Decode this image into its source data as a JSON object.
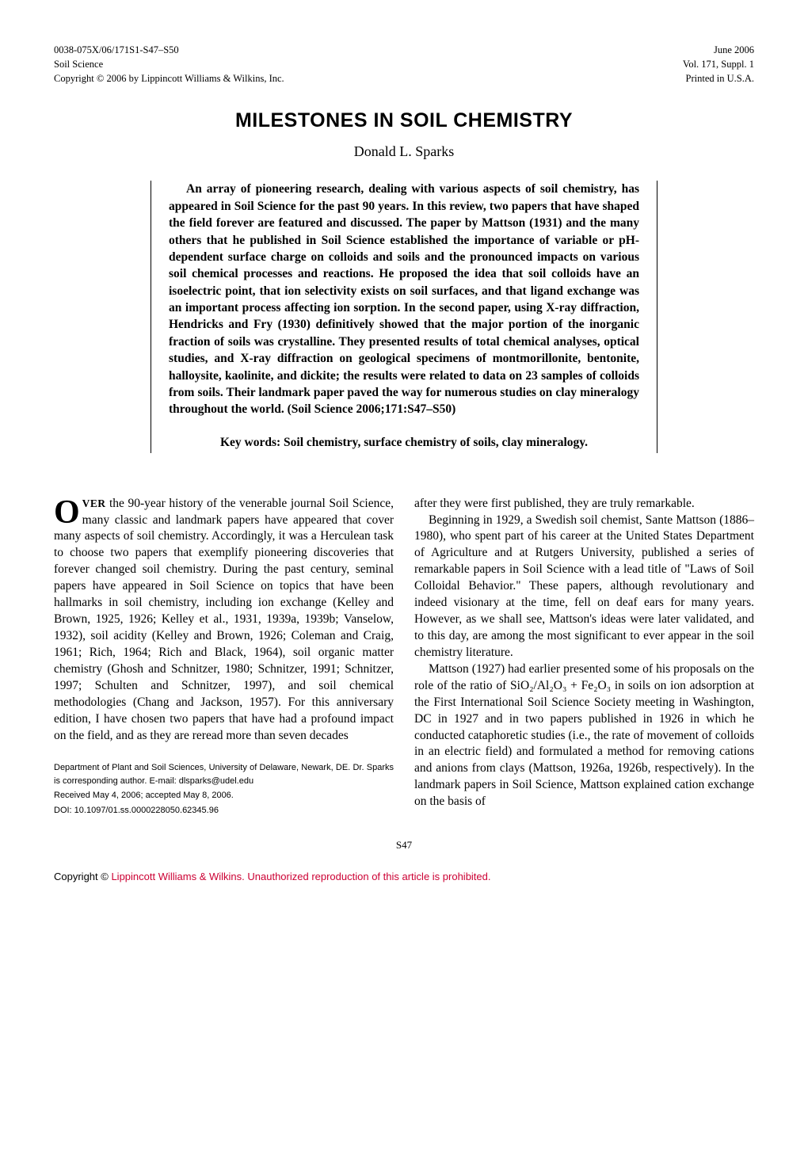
{
  "header": {
    "left": {
      "line1": "0038-075X/06/171S1-S47–S50",
      "line2": "Soil Science",
      "line3": "Copyright © 2006 by Lippincott Williams & Wilkins, Inc."
    },
    "right": {
      "line1": "June 2006",
      "line2": "Vol. 171, Suppl. 1",
      "line3": "Printed in U.S.A."
    }
  },
  "title": "MILESTONES IN SOIL CHEMISTRY",
  "author": "Donald L. Sparks",
  "abstract": "An array of pioneering research, dealing with various aspects of soil chemistry, has appeared in Soil Science for the past 90 years. In this review, two papers that have shaped the field forever are featured and discussed. The paper by Mattson (1931) and the many others that he published in Soil Science established the importance of variable or pH-dependent surface charge on colloids and soils and the pronounced impacts on various soil chemical processes and reactions. He proposed the idea that soil colloids have an isoelectric point, that ion selectivity exists on soil surfaces, and that ligand exchange was an important process affecting ion sorption. In the second paper, using X-ray diffraction, Hendricks and Fry (1930) definitively showed that the major portion of the inorganic fraction of soils was crystalline. They presented results of total chemical analyses, optical studies, and X-ray diffraction on geological specimens of montmorillonite, bentonite, halloysite, kaolinite, and dickite; the results were related to data on 23 samples of colloids from soils. Their landmark paper paved the way for numerous studies on clay mineralogy throughout the world. (Soil Science 2006;171:S47–S50)",
  "keywords": "Key words: Soil chemistry, surface chemistry of soils, clay mineralogy.",
  "body": {
    "dropcap": "O",
    "lead": "VER",
    "col1_p1_rest": " the 90-year history of the venerable journal Soil Science, many classic and landmark papers have appeared that cover many aspects of soil chemistry. Accordingly, it was a Herculean task to choose two papers that exemplify pioneering discoveries that forever changed soil chemistry. During the past century, seminal papers have appeared in Soil Science on topics that have been hallmarks in soil chemistry, including ion exchange (Kelley and Brown, 1925, 1926; Kelley et al., 1931, 1939a, 1939b; Vanselow, 1932), soil acidity (Kelley and Brown, 1926; Coleman and Craig, 1961; Rich, 1964; Rich and Black, 1964), soil organic matter chemistry (Ghosh and Schnitzer, 1980; Schnitzer, 1991; Schnitzer, 1997; Schulten and Schnitzer, 1997), and soil chemical methodologies (Chang and Jackson, 1957). For this anniversary edition, I have chosen two papers that have had a profound impact on the field, and as they are reread more than seven decades",
    "col2_p1": "after they were first published, they are truly remarkable.",
    "col2_p2": "Beginning in 1929, a Swedish soil chemist, Sante Mattson (1886–1980), who spent part of his career at the United States Department of Agriculture and at Rutgers University, published a series of remarkable papers in Soil Science with a lead title of \"Laws of Soil Colloidal Behavior.\" These papers, although revolutionary and indeed visionary at the time, fell on deaf ears for many years. However, as we shall see, Mattson's ideas were later validated, and to this day, are among the most significant to ever appear in the soil chemistry literature.",
    "col2_p3": "Mattson (1927) had earlier presented some of his proposals on the role of the ratio of SiO₂/Al₂O₃ + Fe₂O₃ in soils on ion adsorption at the First International Soil Science Society meeting in Washington, DC in 1927 and in two papers published in 1926 in which he conducted cataphoretic studies (i.e., the rate of movement of colloids in an electric field) and formulated a method for removing cations and anions from clays (Mattson, 1926a, 1926b, respectively). In the landmark papers in Soil Science, Mattson explained cation exchange on the basis of"
  },
  "footnotes": {
    "f1": "Department of Plant and Soil Sciences, University of Delaware, Newark, DE. Dr. Sparks is corresponding author. E-mail: dlsparks@udel.edu",
    "f2": "Received May 4, 2006; accepted May 8, 2006.",
    "f3": "DOI: 10.1097/01.ss.0000228050.62345.96"
  },
  "page_number": "S47",
  "copyright": {
    "prefix": "Copyright © ",
    "main": "Lippincott Williams & Wilkins. Unauthorized reproduction of this article is prohibited."
  },
  "colors": {
    "text": "#000000",
    "background": "#ffffff",
    "accent_red": "#cc0033"
  }
}
